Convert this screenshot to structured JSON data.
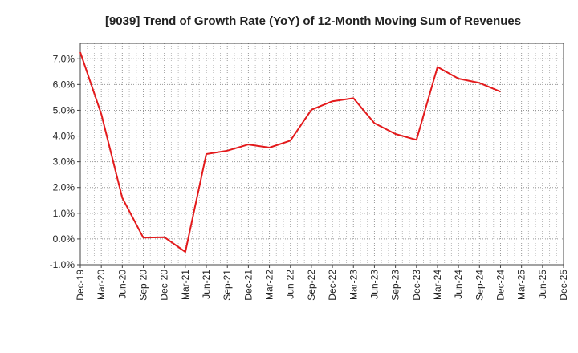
{
  "chart_data": {
    "type": "line",
    "title": "[9039]  Trend of Growth Rate (YoY) of 12-Month Moving Sum of Revenues",
    "xlabel": "",
    "ylabel": "",
    "x_ticks": [
      "Dec-19",
      "Mar-20",
      "Jun-20",
      "Sep-20",
      "Dec-20",
      "Mar-21",
      "Jun-21",
      "Sep-21",
      "Dec-21",
      "Mar-22",
      "Jun-22",
      "Sep-22",
      "Dec-22",
      "Mar-23",
      "Jun-23",
      "Sep-23",
      "Dec-23",
      "Mar-24",
      "Jun-24",
      "Sep-24",
      "Dec-24",
      "Mar-25",
      "Jun-25",
      "Dec-25"
    ],
    "x_ticks_note": "",
    "categories": [
      "Dec-19",
      "Mar-20",
      "Jun-20",
      "Sep-20",
      "Dec-20",
      "Mar-21",
      "Jun-21",
      "Sep-21",
      "Dec-21",
      "Mar-22",
      "Jun-22",
      "Sep-22",
      "Dec-22",
      "Mar-23",
      "Jun-23",
      "Sep-23",
      "Dec-23",
      "Mar-24",
      "Jun-24",
      "Sep-24",
      "Dec-24"
    ],
    "series": [
      {
        "values": [
          7.25,
          4.85,
          1.6,
          0.05,
          0.07,
          -0.5,
          3.3,
          3.43,
          3.67,
          3.55,
          3.82,
          5.02,
          5.35,
          5.47,
          4.5,
          4.08,
          3.85,
          6.68,
          6.23,
          6.06,
          5.72
        ],
        "color": "#e31a1c"
      }
    ],
    "y_ticks": [
      -1,
      0,
      1,
      2,
      3,
      4,
      5,
      6,
      7
    ],
    "y_tick_labels": [
      "-1.0%",
      "0.0%",
      "1.0%",
      "2.0%",
      "3.0%",
      "4.0%",
      "5.0%",
      "6.0%",
      "7.0%"
    ],
    "ylim": [
      -1,
      7.6
    ],
    "unit": "%",
    "grid": true,
    "grid_style": "dotted",
    "legend": "none"
  }
}
